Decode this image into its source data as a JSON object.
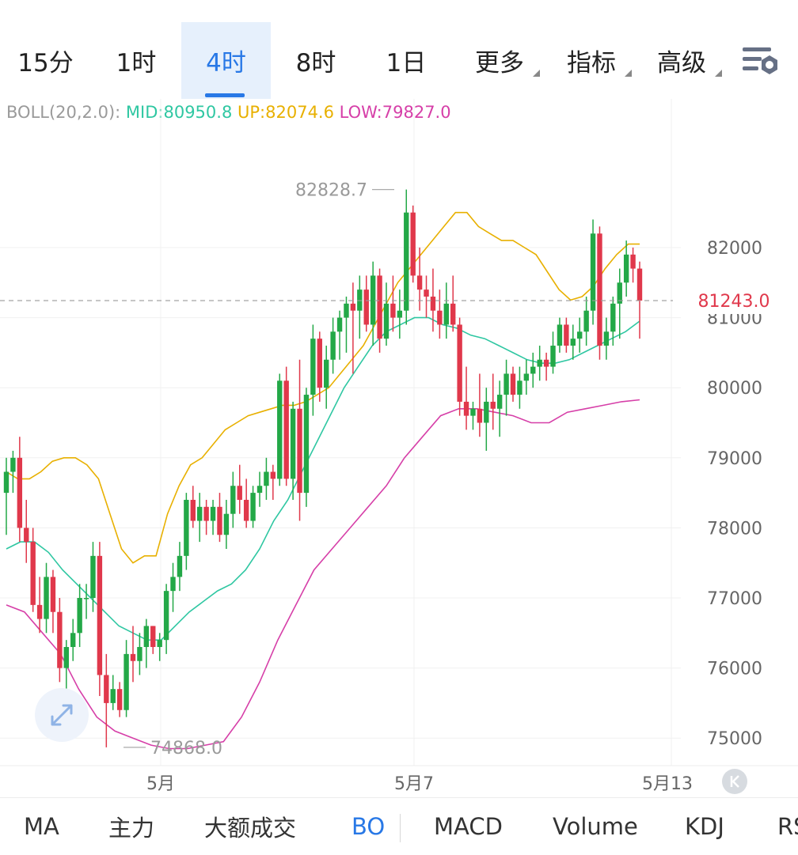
{
  "timeframe_tabs": [
    {
      "label": "15分"
    },
    {
      "label": "1时"
    },
    {
      "label": "4时",
      "active": true
    },
    {
      "label": "8时"
    },
    {
      "label": "1日"
    },
    {
      "label": "更多"
    },
    {
      "label": "指标"
    },
    {
      "label": "高级"
    }
  ],
  "indicator": {
    "name": "BOLL(20,2.0):",
    "mid": "MID:80950.8",
    "up": "UP:82074.6",
    "low": "LOW:79827.0"
  },
  "bottom_tabs": [
    "MA",
    "主力",
    "大额成交",
    "BO",
    "MACD",
    "Volume",
    "KDJ",
    "RS"
  ],
  "colors": {
    "accent": "#2878e6",
    "up_candle": "#23a847",
    "down_candle": "#e0384b",
    "boll_mid": "#2fc7a2",
    "boll_up": "#e8b000",
    "boll_low": "#d63fa8",
    "last_price": "#e0384b"
  },
  "chart_data": {
    "type": "candlestick",
    "y_ticks": [
      "82000",
      "81000",
      "80000",
      "79000",
      "78000",
      "77000",
      "76000",
      "75000"
    ],
    "x_labels": [
      "5月",
      "5月7",
      "5月13"
    ],
    "ylim": [
      74600,
      83800
    ],
    "last_price": "81243.0",
    "high_marker": "82828.7",
    "low_marker": "74868.0",
    "candles": [
      [
        78500,
        79000,
        77900,
        78800
      ],
      [
        78800,
        79100,
        78500,
        79000
      ],
      [
        79000,
        79300,
        77800,
        78000
      ],
      [
        78000,
        78400,
        77500,
        77800
      ],
      [
        77800,
        78000,
        76800,
        76900
      ],
      [
        76900,
        77300,
        76500,
        76700
      ],
      [
        76700,
        77500,
        76500,
        77300
      ],
      [
        77300,
        77400,
        76500,
        76800
      ],
      [
        76800,
        77000,
        75800,
        76000
      ],
      [
        76000,
        76400,
        75600,
        76300
      ],
      [
        76300,
        76700,
        76100,
        76500
      ],
      [
        76500,
        77200,
        76300,
        77000
      ],
      [
        77000,
        77200,
        76700,
        77000
      ],
      [
        77000,
        77800,
        76800,
        77600
      ],
      [
        77600,
        77800,
        75600,
        75900
      ],
      [
        75900,
        76200,
        74868,
        75500
      ],
      [
        75500,
        75900,
        75400,
        75700
      ],
      [
        75700,
        75800,
        75300,
        75400
      ],
      [
        75400,
        76400,
        75300,
        76200
      ],
      [
        76200,
        76600,
        75800,
        76100
      ],
      [
        76100,
        76500,
        75900,
        76300
      ],
      [
        76300,
        76700,
        76000,
        76600
      ],
      [
        76600,
        76600,
        76200,
        76300
      ],
      [
        76300,
        76500,
        76100,
        76400
      ],
      [
        76400,
        77200,
        76200,
        77100
      ],
      [
        77100,
        77500,
        76800,
        77300
      ],
      [
        77300,
        77800,
        77100,
        77600
      ],
      [
        77600,
        78500,
        77400,
        78400
      ],
      [
        78400,
        78600,
        78000,
        78100
      ],
      [
        78100,
        78500,
        77800,
        78300
      ],
      [
        78300,
        78400,
        77900,
        78100
      ],
      [
        78100,
        78400,
        77900,
        78300
      ],
      [
        78300,
        78500,
        77800,
        77900
      ],
      [
        77900,
        78400,
        77700,
        78200
      ],
      [
        78200,
        78800,
        78000,
        78600
      ],
      [
        78600,
        78900,
        78200,
        78400
      ],
      [
        78400,
        78700,
        78000,
        78100
      ],
      [
        78100,
        78600,
        78000,
        78500
      ],
      [
        78500,
        78800,
        78300,
        78600
      ],
      [
        78600,
        79000,
        78400,
        78800
      ],
      [
        78800,
        78900,
        78400,
        78700
      ],
      [
        78700,
        80200,
        78600,
        80100
      ],
      [
        80100,
        80300,
        78600,
        78700
      ],
      [
        78700,
        79800,
        78400,
        79700
      ],
      [
        79700,
        80400,
        78100,
        78500
      ],
      [
        78500,
        80000,
        78300,
        79900
      ],
      [
        79900,
        80900,
        79600,
        80700
      ],
      [
        80700,
        80800,
        79800,
        80000
      ],
      [
        80000,
        80600,
        79700,
        80400
      ],
      [
        80400,
        81000,
        80200,
        80800
      ],
      [
        80800,
        81100,
        80400,
        81000
      ],
      [
        81000,
        81300,
        80500,
        81200
      ],
      [
        81200,
        81500,
        80200,
        81100
      ],
      [
        81100,
        81600,
        80700,
        81400
      ],
      [
        81400,
        81600,
        80800,
        80900
      ],
      [
        80900,
        81800,
        80600,
        81600
      ],
      [
        81600,
        81700,
        80500,
        80700
      ],
      [
        80700,
        81500,
        80600,
        81200
      ],
      [
        81200,
        81600,
        80800,
        81000
      ],
      [
        81000,
        81400,
        80700,
        81100
      ],
      [
        81100,
        82828,
        80900,
        82500
      ],
      [
        82500,
        82600,
        81500,
        81600
      ],
      [
        81600,
        82000,
        81100,
        81400
      ],
      [
        81400,
        81600,
        81000,
        81300
      ],
      [
        81300,
        81700,
        80800,
        81100
      ],
      [
        81100,
        81400,
        80700,
        80900
      ],
      [
        80900,
        81500,
        80700,
        81200
      ],
      [
        81200,
        81600,
        80800,
        80900
      ],
      [
        80900,
        81000,
        79600,
        79800
      ],
      [
        79800,
        80300,
        79400,
        79600
      ],
      [
        79600,
        79800,
        79400,
        79700
      ],
      [
        79700,
        80200,
        79300,
        79500
      ],
      [
        79500,
        80000,
        79100,
        79800
      ],
      [
        79800,
        80200,
        79400,
        79700
      ],
      [
        79700,
        80100,
        79300,
        79900
      ],
      [
        79900,
        80400,
        79600,
        80200
      ],
      [
        80200,
        80300,
        79800,
        79900
      ],
      [
        79900,
        80300,
        79700,
        80100
      ],
      [
        80100,
        80400,
        79900,
        80200
      ],
      [
        80200,
        80500,
        80000,
        80300
      ],
      [
        80300,
        80600,
        80100,
        80400
      ],
      [
        80400,
        80500,
        80100,
        80300
      ],
      [
        80300,
        80800,
        80200,
        80600
      ],
      [
        80600,
        81000,
        80500,
        80900
      ],
      [
        80900,
        81000,
        80500,
        80600
      ],
      [
        80600,
        80900,
        80400,
        80700
      ],
      [
        80700,
        81000,
        80500,
        80800
      ],
      [
        80800,
        81300,
        80600,
        81100
      ],
      [
        81100,
        82400,
        80900,
        82200
      ],
      [
        82200,
        82300,
        80400,
        80600
      ],
      [
        80600,
        81000,
        80400,
        80800
      ],
      [
        80800,
        81300,
        80600,
        81200
      ],
      [
        81200,
        81700,
        80700,
        81500
      ],
      [
        81500,
        82100,
        81300,
        81900
      ],
      [
        81900,
        82000,
        81500,
        81700
      ],
      [
        81700,
        81800,
        80700,
        81243
      ]
    ],
    "boll_up": [
      78800,
      78700,
      78700,
      78800,
      78950,
      79000,
      79000,
      78900,
      78700,
      78200,
      77700,
      77500,
      77600,
      77600,
      78200,
      78600,
      78900,
      79000,
      79200,
      79400,
      79500,
      79600,
      79650,
      79700,
      79750,
      79750,
      79800,
      79900,
      80000,
      80200,
      80400,
      80600,
      80900,
      81200,
      81500,
      81700,
      81900,
      82100,
      82300,
      82500,
      82500,
      82300,
      82200,
      82100,
      82100,
      82000,
      81900,
      81650,
      81400,
      81250,
      81300,
      81450,
      81700,
      81900,
      82050,
      82050
    ],
    "boll_mid": [
      77700,
      77800,
      77800,
      77650,
      77400,
      77200,
      77000,
      76800,
      76600,
      76500,
      76400,
      76400,
      76600,
      76800,
      76950,
      77100,
      77200,
      77400,
      77700,
      78100,
      78400,
      78800,
      79200,
      79600,
      80000,
      80300,
      80600,
      80800,
      80900,
      81000,
      81000,
      80900,
      80850,
      80750,
      80700,
      80600,
      80500,
      80400,
      80350,
      80350,
      80400,
      80500,
      80600,
      80700,
      80800,
      80950
    ],
    "boll_low": [
      76900,
      76800,
      76500,
      76200,
      75700,
      75300,
      75100,
      75000,
      74900,
      74850,
      74850,
      74900,
      74950,
      75300,
      75800,
      76400,
      76900,
      77400,
      77700,
      78000,
      78300,
      78600,
      79000,
      79300,
      79600,
      79700,
      79700,
      79650,
      79600,
      79500,
      79500,
      79650,
      79700,
      79750,
      79800,
      79827
    ]
  }
}
